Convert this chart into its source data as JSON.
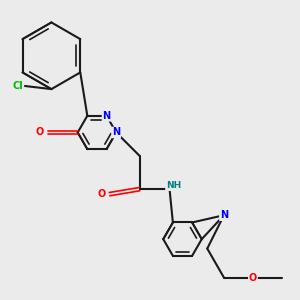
{
  "background_color": "#ebebeb",
  "bond_color": "#1a1a1a",
  "atom_colors": {
    "N": "#0000ff",
    "O": "#ff0000",
    "Cl": "#00bb00",
    "NH": "#008080",
    "C": "#1a1a1a"
  },
  "figsize": [
    3.0,
    3.0
  ],
  "dpi": 100
}
